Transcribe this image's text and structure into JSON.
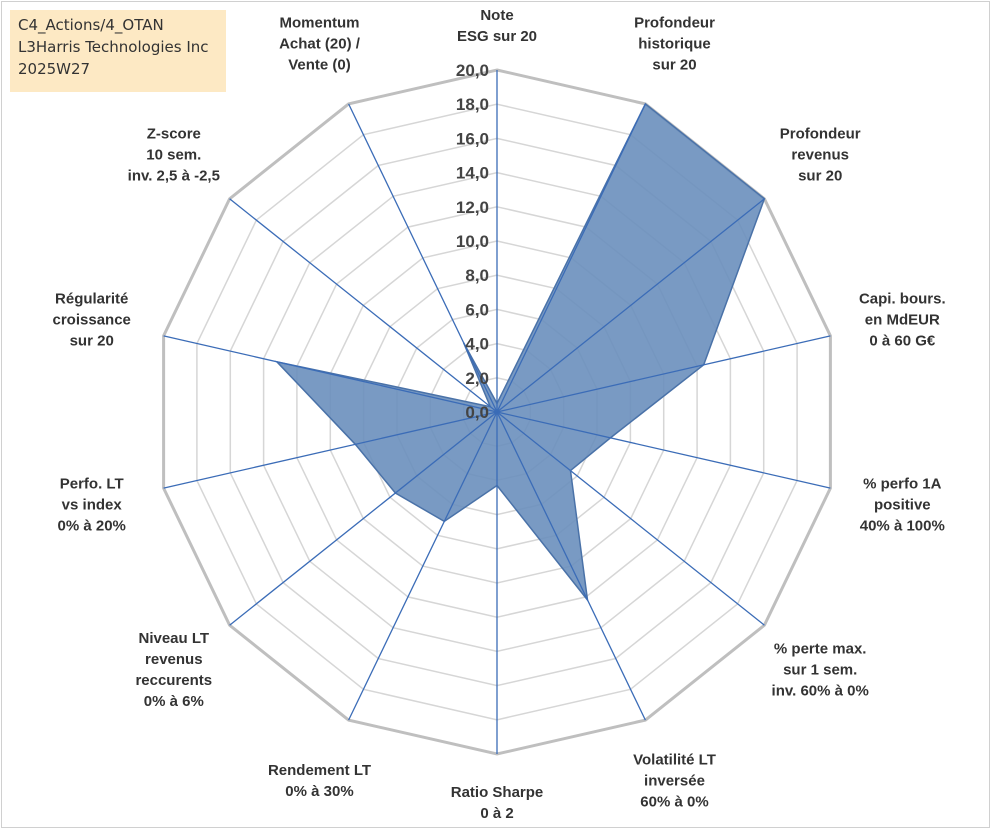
{
  "header": {
    "line1": "C4_Actions/4_OTAN",
    "line2": "L3Harris Technologies Inc",
    "line3": "2025W27"
  },
  "chart_data": {
    "type": "radar",
    "rmin": 0,
    "rmax": 20,
    "tick_values": [
      0,
      2,
      4,
      6,
      8,
      10,
      12,
      14,
      16,
      18,
      20
    ],
    "tick_labels": [
      "0,0",
      "2,0",
      "4,0",
      "6,0",
      "8,0",
      "10,0",
      "12,0",
      "14,0",
      "16,0",
      "18,0",
      "20,0"
    ],
    "categories": [
      [
        "Note",
        "ESG sur 20"
      ],
      [
        "Profondeur",
        "historique",
        "sur 20"
      ],
      [
        "Profondeur",
        "revenus",
        "sur 20"
      ],
      [
        "Capi. bours.",
        "en MdEUR",
        "0 à 60 G€"
      ],
      [
        "% perfo 1A",
        "positive",
        "40% à 100%"
      ],
      [
        "% perte max.",
        "sur 1 sem.",
        "inv. 60% à 0%"
      ],
      [
        "Volatilité LT",
        "inversée",
        "60% à 0%"
      ],
      [
        "Ratio Sharpe",
        "0 à 2"
      ],
      [
        "Rendement LT",
        "0% à 30%"
      ],
      [
        "Niveau LT",
        "revenus",
        "reccurents",
        "0% à 6%"
      ],
      [
        "Perfo. LT",
        "vs index",
        "0% à 20%"
      ],
      [
        "Régularité",
        "croissance",
        "sur 20"
      ],
      [
        "Z-score",
        "10 sem.",
        "inv. 2,5 à -2,5"
      ],
      [
        "Momentum",
        "Achat (20) /",
        "Vente (0)"
      ]
    ],
    "values": [
      0.5,
      20.0,
      20.0,
      12.4,
      6.8,
      5.5,
      12.2,
      4.3,
      7.1,
      7.6,
      8.5,
      13.2,
      0.5,
      4.5
    ],
    "series_color": "#6a8fbd",
    "grid": true
  }
}
